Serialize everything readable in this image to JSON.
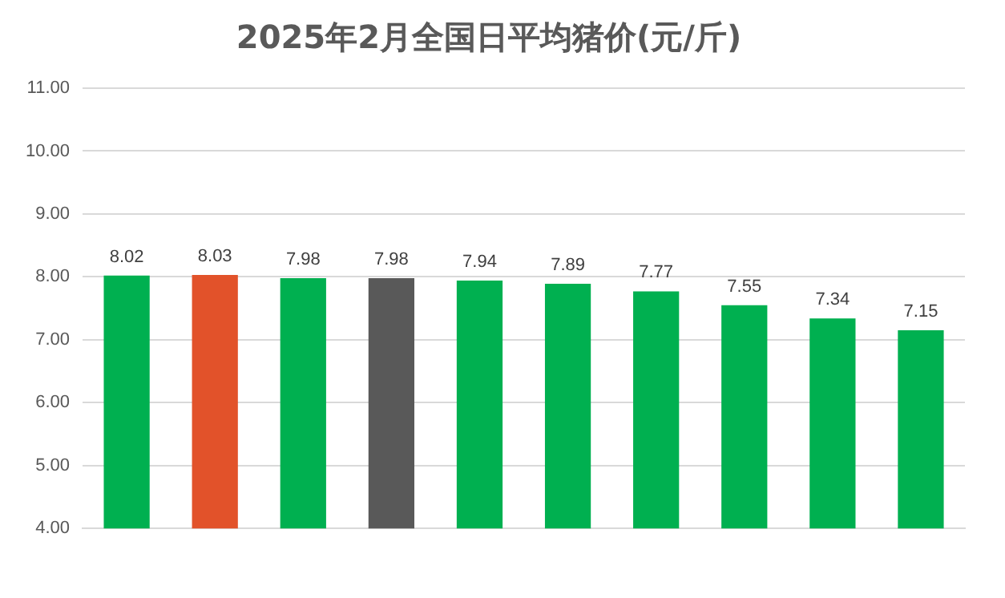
{
  "chart_data": {
    "type": "bar",
    "title": "2025年2月全国日平均猪价(元/斤)",
    "categories": [
      null,
      null,
      null,
      null,
      null,
      null,
      null,
      null,
      null,
      null
    ],
    "values": [
      8.02,
      8.03,
      7.98,
      7.98,
      7.94,
      7.89,
      7.77,
      7.55,
      7.34,
      7.15
    ],
    "colors": [
      "#00b050",
      "#e2522a",
      "#00b050",
      "#595959",
      "#00b050",
      "#00b050",
      "#00b050",
      "#00b050",
      "#00b050",
      "#00b050"
    ],
    "ylim": [
      4,
      11
    ],
    "yticks": [
      {
        "value": 4,
        "label": "4.00"
      },
      {
        "value": 5,
        "label": "5.00"
      },
      {
        "value": 6,
        "label": "6.00"
      },
      {
        "value": 7,
        "label": "7.00"
      },
      {
        "value": 8,
        "label": "8.00"
      },
      {
        "value": 9,
        "label": "9.00"
      },
      {
        "value": 10,
        "label": "10.00"
      },
      {
        "value": 11,
        "label": "11.00"
      }
    ],
    "grid": "y",
    "legend": false,
    "data_labels": true
  }
}
